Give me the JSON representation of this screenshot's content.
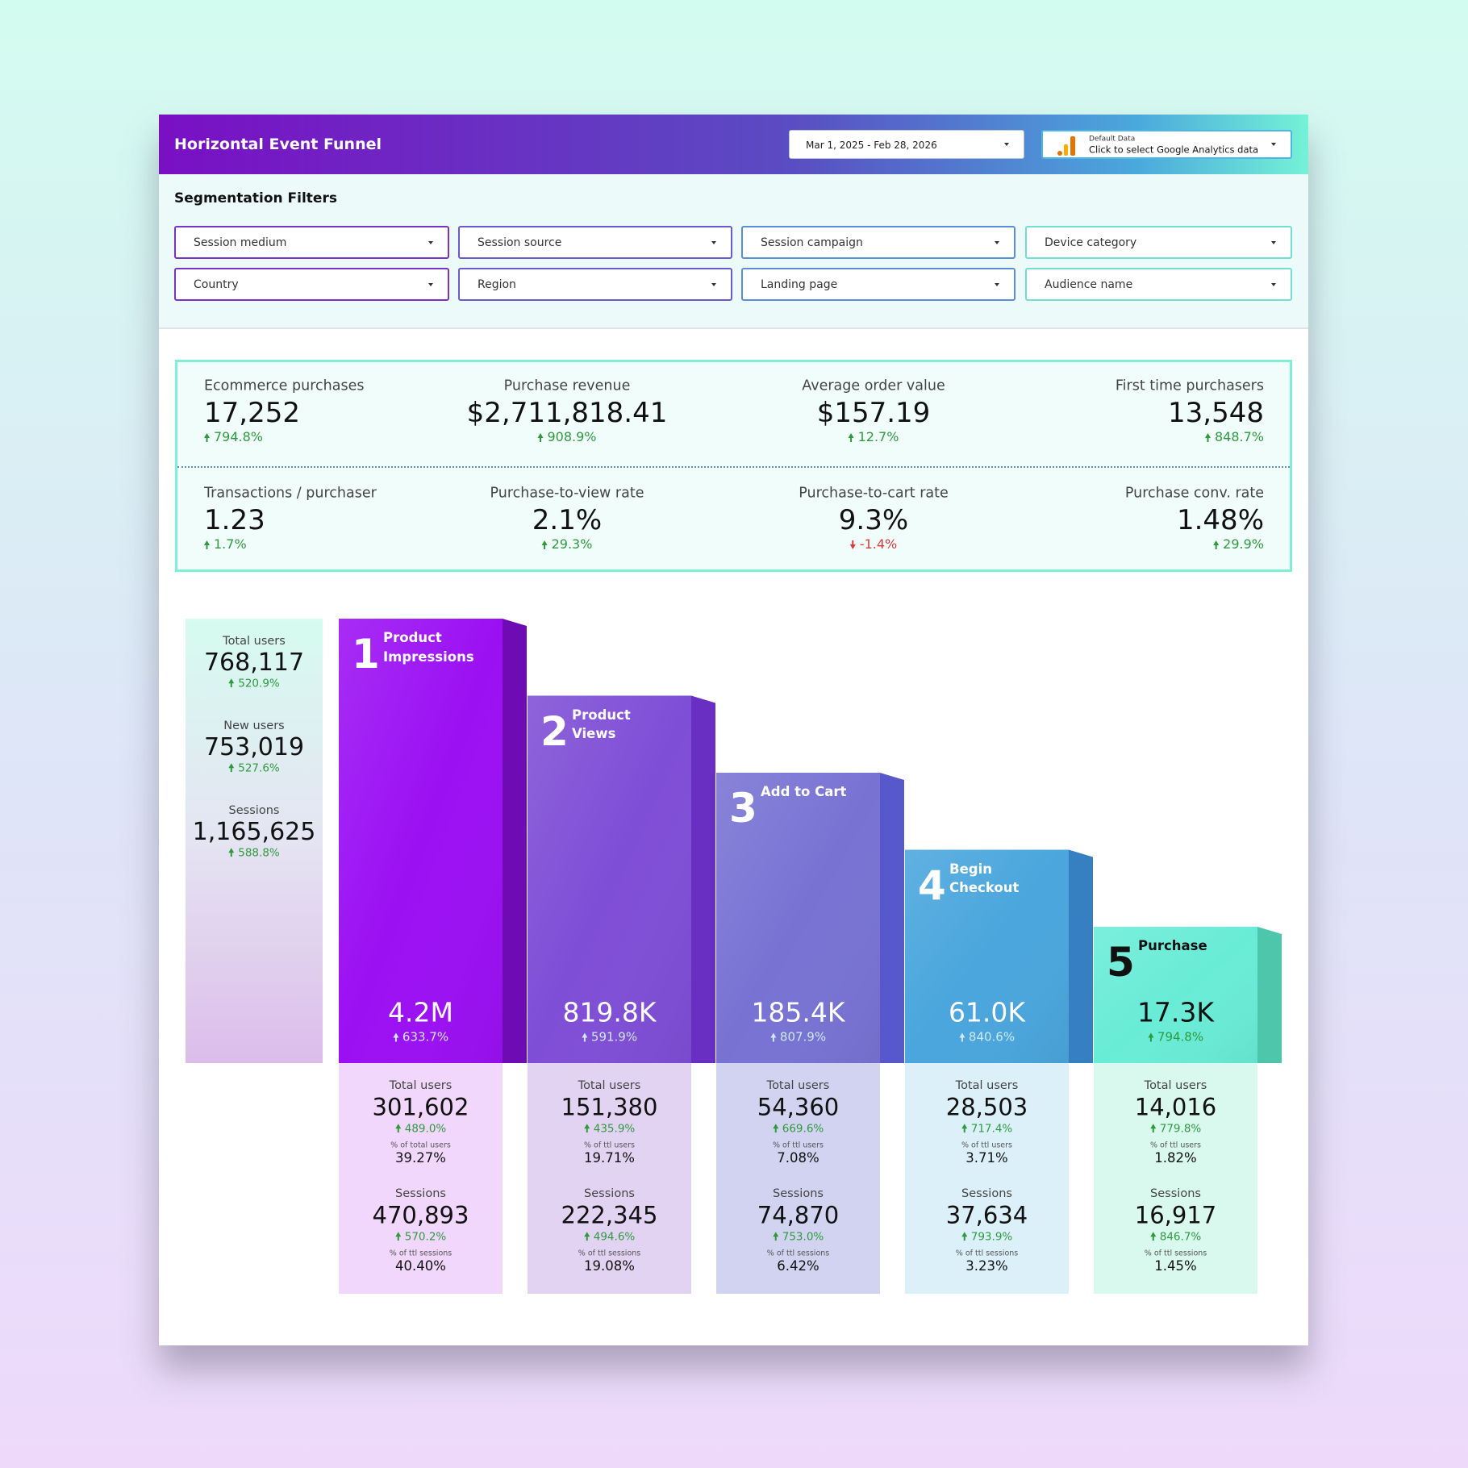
{
  "header": {
    "title": "Horizontal Event Funnel",
    "date_range": "Mar 1, 2025 - Feb 28, 2026",
    "data_source": {
      "label": "Default Data",
      "hint": "Click to select Google Analytics data"
    }
  },
  "filters": {
    "title": "Segmentation Filters",
    "items": [
      "Session medium",
      "Session source",
      "Session campaign",
      "Device category",
      "Country",
      "Region",
      "Landing page",
      "Audience name"
    ]
  },
  "kpis": [
    {
      "label": "Ecommerce purchases",
      "value": "17,252",
      "change": "794.8%"
    },
    {
      "label": "Purchase revenue",
      "value": "$2,711,818.41",
      "change": "908.9%"
    },
    {
      "label": "Average order value",
      "value": "$157.19",
      "change": "12.7%"
    },
    {
      "label": "First time purchasers",
      "value": "13,548",
      "change": "848.7%"
    },
    {
      "label": "Transactions / purchaser",
      "value": "1.23",
      "change": "1.7%"
    },
    {
      "label": "Purchase-to-view rate",
      "value": "2.1%",
      "change": "29.3%"
    },
    {
      "label": "Purchase-to-cart rate",
      "value": "9.3%",
      "change": "-1.4%"
    },
    {
      "label": "Purchase conv. rate",
      "value": "1.48%",
      "change": "29.9%"
    }
  ],
  "funnel": {
    "summary": [
      {
        "label": "Total users",
        "value": "768,117",
        "change": "520.9%"
      },
      {
        "label": "New users",
        "value": "753,019",
        "change": "527.6%"
      },
      {
        "label": "Sessions",
        "value": "1,165,625",
        "change": "588.8%"
      }
    ],
    "steps": [
      {
        "number": "1",
        "name": "Product Impressions",
        "value": "4.2M",
        "change": "633.7%",
        "users": {
          "label": "Total users",
          "value": "301,602",
          "change": "489.0%",
          "share_label": "% of total users",
          "share": "39.27%"
        },
        "sessions": {
          "label": "Sessions",
          "value": "470,893",
          "change": "570.2%",
          "share_label": "% of ttl sessions",
          "share": "40.40%"
        }
      },
      {
        "number": "2",
        "name": "Product Views",
        "value": "819.8K",
        "change": "591.9%",
        "users": {
          "label": "Total users",
          "value": "151,380",
          "change": "435.9%",
          "share_label": "% of ttl users",
          "share": "19.71%"
        },
        "sessions": {
          "label": "Sessions",
          "value": "222,345",
          "change": "494.6%",
          "share_label": "% of ttl sessions",
          "share": "19.08%"
        }
      },
      {
        "number": "3",
        "name": "Add to Cart",
        "value": "185.4K",
        "change": "807.9%",
        "users": {
          "label": "Total users",
          "value": "54,360",
          "change": "669.6%",
          "share_label": "% of ttl users",
          "share": "7.08%"
        },
        "sessions": {
          "label": "Sessions",
          "value": "74,870",
          "change": "753.0%",
          "share_label": "% of ttl sessions",
          "share": "6.42%"
        }
      },
      {
        "number": "4",
        "name": "Begin Checkout",
        "value": "61.0K",
        "change": "840.6%",
        "users": {
          "label": "Total users",
          "value": "28,503",
          "change": "717.4%",
          "share_label": "% of ttl users",
          "share": "3.71%"
        },
        "sessions": {
          "label": "Sessions",
          "value": "37,634",
          "change": "793.9%",
          "share_label": "% of ttl sessions",
          "share": "3.23%"
        }
      },
      {
        "number": "5",
        "name": "Purchase",
        "value": "17.3K",
        "change": "794.8%",
        "users": {
          "label": "Total users",
          "value": "14,016",
          "change": "779.8%",
          "share_label": "% of ttl users",
          "share": "1.82%"
        },
        "sessions": {
          "label": "Sessions",
          "value": "16,917",
          "change": "846.7%",
          "share_label": "% of ttl sessions",
          "share": "1.45%"
        }
      }
    ]
  }
}
